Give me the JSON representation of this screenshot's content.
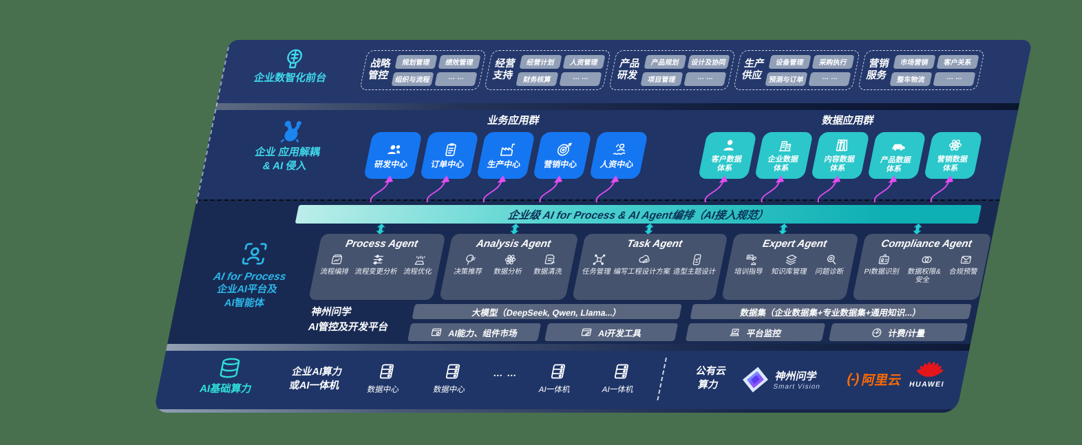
{
  "colors": {
    "background": "#48704E",
    "band_navy": "#203466",
    "app_blue": "#1576f2",
    "data_teal": "#2bc7ca",
    "cyan_label": "#3fd9ea",
    "banner_teal": "#0fb0b5",
    "arrow_magenta": "#e44df2",
    "alibaba_orange": "#ff6a00",
    "huawei_red": "#e4161b"
  },
  "front_layer": {
    "label": "企业数智化前台",
    "icon": "ai-head-icon",
    "groups": [
      {
        "title": "战略管控",
        "items": [
          "规划管理",
          "绩效管理",
          "组织与流程",
          "… …"
        ]
      },
      {
        "title": "经营支持",
        "items": [
          "经营计划",
          "人资管理",
          "财务核算",
          "… …"
        ]
      },
      {
        "title": "产品研发",
        "items": [
          "产品规划",
          "设计及协同",
          "项目管理",
          "… …"
        ]
      },
      {
        "title": "生产供应",
        "items": [
          "设备管理",
          "采购执行",
          "预测与订单",
          "… …"
        ]
      },
      {
        "title": "营销服务",
        "items": [
          "市场营销",
          "客户关系",
          "整车物流",
          "… …"
        ]
      }
    ]
  },
  "app_layer": {
    "icon": "molecule-icon",
    "label_line1": "企业 应用解耦",
    "label_line2": "& AI 侵入",
    "business": {
      "title": "业务应用群",
      "apps": [
        {
          "label": "研发中心",
          "icon": "team-icon"
        },
        {
          "label": "订单中心",
          "icon": "order-clipboard-icon"
        },
        {
          "label": "生产中心",
          "icon": "factory-icon"
        },
        {
          "label": "营销中心",
          "icon": "target-icon"
        },
        {
          "label": "人资中心",
          "icon": "hr-people-icon"
        }
      ]
    },
    "data": {
      "title": "数据应用群",
      "apps": [
        {
          "label": "客户数据体系",
          "icon": "customer-person-icon"
        },
        {
          "label": "企业数据体系",
          "icon": "enterprise-building-icon"
        },
        {
          "label": "内容数据体系",
          "icon": "content-books-icon"
        },
        {
          "label": "产品数据体系",
          "icon": "product-car-icon"
        },
        {
          "label": "营销数据体系",
          "icon": "marketing-atom-icon"
        }
      ]
    }
  },
  "banner": {
    "text": "企业级 AI for Process & AI Agent编排（AI接入规范）"
  },
  "ai_layer": {
    "icon": "scan-person-icon",
    "label_line1": "AI for Process",
    "label_line2": "企业AI平台及",
    "label_line3": "AI智能体",
    "agents": [
      {
        "title": "Process Agent",
        "items": [
          {
            "label": "流程编排",
            "icon": "workflow-chart-icon"
          },
          {
            "label": "流程变更分析",
            "icon": "sliders-icon"
          },
          {
            "label": "流程优化",
            "icon": "optimize-spark-icon"
          }
        ]
      },
      {
        "title": "Analysis Agent",
        "items": [
          {
            "label": "决策推荐",
            "icon": "decision-head-icon"
          },
          {
            "label": "数据分析",
            "icon": "analysis-atom-icon"
          },
          {
            "label": "数据清洗",
            "icon": "data-clean-doc-icon"
          }
        ]
      },
      {
        "title": "Task Agent",
        "items": [
          {
            "label": "任务管理",
            "icon": "task-grid-icon"
          },
          {
            "label": "编写工程设计方案",
            "icon": "cloud-design-icon"
          },
          {
            "label": "造型主题设计",
            "icon": "style-check-icon"
          }
        ]
      },
      {
        "title": "Expert Agent",
        "items": [
          {
            "label": "培训指导",
            "icon": "training-icon"
          },
          {
            "label": "知识库管理",
            "icon": "knowledge-layers-icon"
          },
          {
            "label": "问题诊断",
            "icon": "diagnosis-icon"
          }
        ]
      },
      {
        "title": "Compliance Agent",
        "items": [
          {
            "label": "PI数据识别",
            "icon": "id-card-icon"
          },
          {
            "label": "数据权限&安全",
            "icon": "rings-icon"
          },
          {
            "label": "合规预警",
            "icon": "alert-mail-icon"
          }
        ]
      }
    ]
  },
  "platform": {
    "label_line1": "神州问学",
    "label_line2": "AI管控及开发平台",
    "model_bar": "大模型（DeepSeek, Qwen, Llama...）",
    "model_boxes": [
      {
        "label": "AI能力、组件市场",
        "icon": "window-gear-icon"
      },
      {
        "label": "AI开发工具",
        "icon": "window-pen-icon"
      }
    ],
    "dataset_bar": "数据集（企业数据集+专业数据集+通用知识...）",
    "dataset_boxes": [
      {
        "label": "平台监控",
        "icon": "laptop-monitor-icon"
      },
      {
        "label": "计费/计量",
        "icon": "gauge-icon"
      }
    ]
  },
  "infra": {
    "label": "AI基础算力",
    "icon": "database-icon",
    "compute_line1": "企业AI算力",
    "compute_line2": "或AI一体机",
    "nodes": [
      {
        "label": "数据中心",
        "icon": "server-icon"
      },
      {
        "label": "数据中心",
        "icon": "server-icon"
      }
    ],
    "dots": "… …",
    "appliances": [
      {
        "label": "AI一体机",
        "icon": "server-icon"
      },
      {
        "label": "AI一体机",
        "icon": "server-icon"
      }
    ],
    "cloud_line1": "公有云",
    "cloud_line2": "算力",
    "logos": {
      "smartvision": {
        "name": "神州问学",
        "subtitle": "Smart Vision"
      },
      "alibaba": {
        "bracket": "(-)",
        "name": "阿里云"
      },
      "huawei": {
        "name": "HUAWEI"
      }
    }
  }
}
